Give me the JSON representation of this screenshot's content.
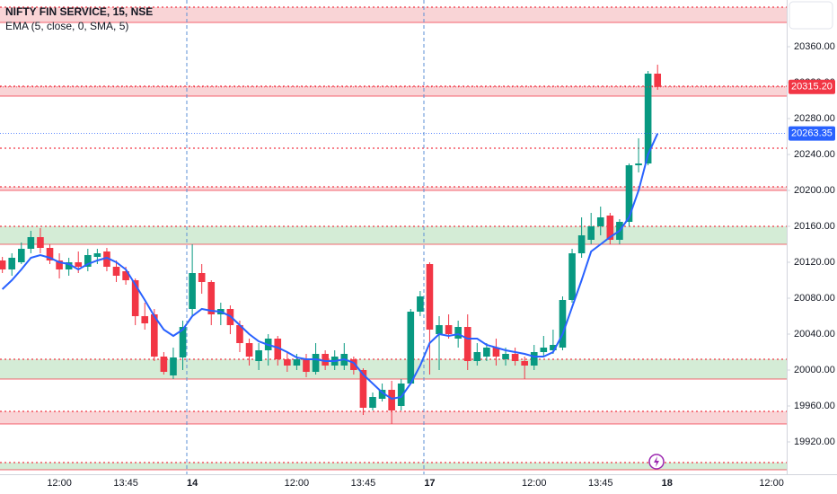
{
  "chart_data": {
    "type": "candlestick",
    "title": "NIFTY FIN SERVICE, 15, NSE",
    "up_color": "#089981",
    "down_color": "#f23645",
    "open": [
      20122,
      20112,
      20120,
      20135,
      20148,
      20136,
      20122,
      20112,
      20120,
      20115,
      20126,
      20132,
      20115,
      20110,
      20100,
      20060,
      20062,
      20015,
      19994,
      20014,
      20068,
      20108,
      20098,
      20062,
      20068,
      20050,
      20030,
      20010,
      20022,
      20035,
      20012,
      20005,
      20012,
      19998,
      20018,
      20005,
      20005,
      20012,
      20000,
      19958,
      19968,
      19978,
      19960,
      19985,
      20065,
      20118,
      20040,
      20050,
      20035,
      20048,
      20010,
      20015,
      20025,
      20012,
      20018,
      20010,
      20005,
      20020,
      20022,
      20025,
      20078,
      20130,
      20145,
      20160,
      20172,
      20145,
      20165,
      20228,
      20230,
      20330
    ],
    "high": [
      20126,
      20130,
      20142,
      20155,
      20158,
      20140,
      20130,
      20125,
      20132,
      20135,
      20135,
      20136,
      20122,
      20115,
      20102,
      20075,
      20068,
      20020,
      20025,
      20055,
      20140,
      20118,
      20100,
      20075,
      20072,
      20055,
      20035,
      20030,
      20040,
      20038,
      20020,
      20018,
      20018,
      20030,
      20022,
      20022,
      20030,
      20015,
      20002,
      19975,
      19985,
      19988,
      19990,
      20068,
      20088,
      20120,
      20060,
      20062,
      20055,
      20062,
      20030,
      20030,
      20035,
      20025,
      20025,
      20015,
      20028,
      20038,
      20045,
      20082,
      20135,
      20170,
      20175,
      20182,
      20175,
      20168,
      20230,
      20258,
      20333,
      20340
    ],
    "low": [
      20108,
      20105,
      20118,
      20130,
      20130,
      20118,
      20102,
      20105,
      20108,
      20110,
      20118,
      20110,
      20098,
      20095,
      20050,
      20045,
      20010,
      19995,
      19990,
      20000,
      20060,
      20085,
      20050,
      20050,
      20040,
      20020,
      20005,
      20000,
      20005,
      20005,
      19998,
      20000,
      19992,
      19995,
      20000,
      20000,
      20000,
      19995,
      19950,
      19955,
      19965,
      19940,
      19955,
      19985,
      20060,
      19995,
      20000,
      20035,
      20025,
      20000,
      20005,
      20010,
      20005,
      20005,
      20005,
      19990,
      20000,
      20015,
      20018,
      20022,
      20075,
      20125,
      20140,
      20150,
      20140,
      20140,
      20160,
      20220,
      20228,
      20312
    ],
    "close": [
      20112,
      20125,
      20135,
      20148,
      20136,
      20122,
      20112,
      20120,
      20115,
      20128,
      20130,
      20115,
      20105,
      20100,
      20060,
      20052,
      20015,
      19998,
      20014,
      20048,
      20108,
      20098,
      20062,
      20068,
      20050,
      20030,
      20015,
      20022,
      20035,
      20012,
      20005,
      20012,
      19998,
      20018,
      20005,
      20015,
      20018,
      20000,
      19958,
      19970,
      19978,
      19955,
      19985,
      20065,
      20082,
      20045,
      20050,
      20040,
      20048,
      20010,
      20020,
      20025,
      20015,
      20018,
      20010,
      20005,
      20020,
      20025,
      20028,
      20078,
      20130,
      20150,
      20160,
      20170,
      20145,
      20165,
      20228,
      20230,
      20330,
      20315.2
    ],
    "series": [
      {
        "name": "EMA (5, close, 0, SMA, 5)",
        "color": "#2962ff",
        "values": [
          20090,
          20100,
          20112,
          20125,
          20128,
          20125,
          20120,
          20118,
          20112,
          20118,
          20122,
          20125,
          20120,
          20112,
          20095,
          20078,
          20060,
          20045,
          20038,
          20045,
          20060,
          20068,
          20066,
          20065,
          20060,
          20050,
          20040,
          20032,
          20028,
          20025,
          20020,
          20014,
          20012,
          20012,
          20010,
          20010,
          20012,
          20008,
          19995,
          19985,
          19975,
          19968,
          19970,
          19985,
          20005,
          20030,
          20040,
          20038,
          20040,
          20035,
          20035,
          20028,
          20025,
          20022,
          20020,
          20018,
          20015,
          20015,
          20020,
          20040,
          20070,
          20100,
          20132,
          20140,
          20148,
          20155,
          20170,
          20200,
          20240,
          20263.35
        ]
      }
    ],
    "price_tags": [
      {
        "value": 20315.2,
        "label": "20315.20",
        "color": "#f23645"
      },
      {
        "value": 20263.35,
        "label": "20263.35",
        "color": "#2962ff"
      }
    ],
    "bands": [
      {
        "from": 20387,
        "to": 20404,
        "fill": "#f9d4d6",
        "edge": "#f23645"
      },
      {
        "from": 20305,
        "to": 20316,
        "fill": "#f9d4d6",
        "edge": "#f23645"
      },
      {
        "from": 20247,
        "to": 20247,
        "fill": "#f9d4d6",
        "edge": "#f23645"
      },
      {
        "from": 20200,
        "to": 20204,
        "fill": "#f9d4d6",
        "edge": "#f23645"
      },
      {
        "from": 20140,
        "to": 20160,
        "fill": "#d4ecd6",
        "edge": "#f23645"
      },
      {
        "from": 19990,
        "to": 20012,
        "fill": "#d4ecd6",
        "edge": "#f23645"
      },
      {
        "from": 19940,
        "to": 19954,
        "fill": "#f9d4d6",
        "edge": "#f23645"
      },
      {
        "from": 19889,
        "to": 19897,
        "fill": "#d4ecd6",
        "edge": "#f23645"
      }
    ],
    "xlim": [
      -0.25,
      82.6
    ],
    "xticks": [
      {
        "value": 6,
        "label": "12:00"
      },
      {
        "value": 13,
        "label": "13:45"
      },
      {
        "value": 20,
        "label": "14"
      },
      {
        "value": 31,
        "label": "12:00"
      },
      {
        "value": 38,
        "label": "13:45"
      },
      {
        "value": 45,
        "label": "17"
      },
      {
        "value": 56,
        "label": "12:00"
      },
      {
        "value": 63,
        "label": "13:45"
      },
      {
        "value": 70,
        "label": "18"
      },
      {
        "value": 81,
        "label": "12:00"
      }
    ],
    "ylim": [
      19884,
      20412
    ],
    "yticks": [
      {
        "value": 20360,
        "label": "20360.00"
      },
      {
        "value": 20320,
        "label": "20320.00"
      },
      {
        "value": 20280,
        "label": "20280.00"
      },
      {
        "value": 20240,
        "label": "20240.00"
      },
      {
        "value": 20200,
        "label": "20200.00"
      },
      {
        "value": 20160,
        "label": "20160.00"
      },
      {
        "value": 20120,
        "label": "20120.00"
      },
      {
        "value": 20080,
        "label": "20080.00"
      },
      {
        "value": 20040,
        "label": "20040.00"
      },
      {
        "value": 20000,
        "label": "20000.00"
      },
      {
        "value": 19960,
        "label": "19960.00"
      },
      {
        "value": 19920,
        "label": "19920.00"
      }
    ]
  }
}
